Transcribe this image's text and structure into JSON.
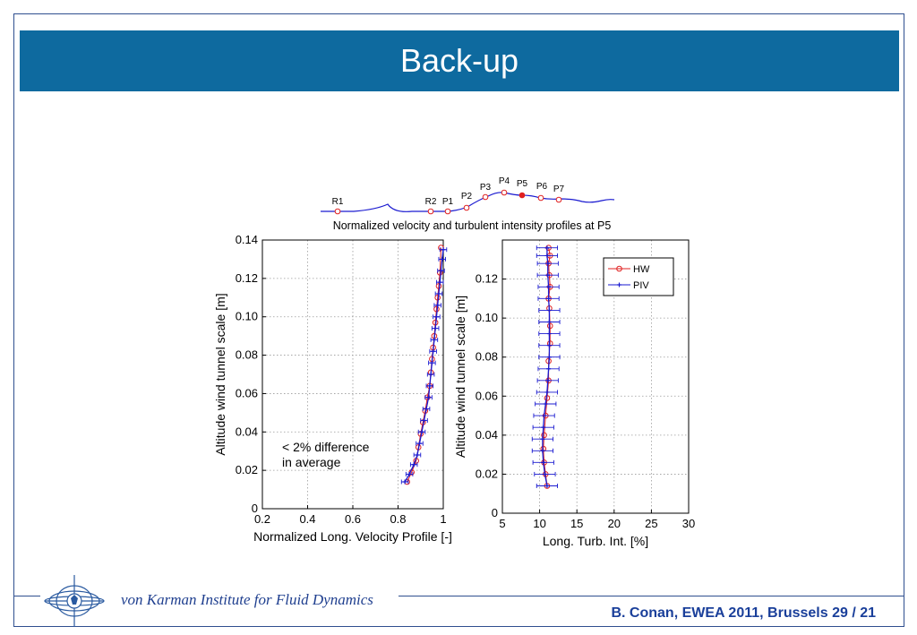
{
  "slide": {
    "title": "Back-up",
    "institute": "von Karman Institute for Fluid Dynamics",
    "citation": "B. Conan, EWEA 2011, Brussels  29 / 21"
  },
  "colors": {
    "header": "#0e6a9f",
    "hw": "#e02020",
    "piv": "#1a1ad0",
    "terrain": "#1a1ad0"
  },
  "terrain": {
    "stations": [
      "R1",
      "R2",
      "P1",
      "P2",
      "P3",
      "P4",
      "P5",
      "P6",
      "P7"
    ],
    "highlighted": "P5"
  },
  "chart_data": [
    {
      "type": "line",
      "title": "Normalized velocity and turbulent intensity profiles at P5",
      "xlabel": "Normalized Long. Velocity Profile [-]",
      "ylabel": "Altitude wind tunnel scale [m]",
      "xlim": [
        0.2,
        1.0
      ],
      "ylim": [
        0,
        0.14
      ],
      "xticks": [
        "0.2",
        "0.4",
        "0.6",
        "0.8",
        "1"
      ],
      "yticks": [
        "0",
        "0.02",
        "0.04",
        "0.06",
        "0.08",
        "0.10",
        "0.12",
        "0.14"
      ],
      "grid": true,
      "annotation": "< 2% difference\nin average",
      "series": [
        {
          "name": "HW",
          "marker": "circle",
          "x": [
            0.84,
            0.86,
            0.88,
            0.89,
            0.9,
            0.91,
            0.92,
            0.93,
            0.94,
            0.945,
            0.95,
            0.955,
            0.96,
            0.965,
            0.97,
            0.975,
            0.98,
            0.985,
            0.99
          ],
          "y": [
            0.014,
            0.019,
            0.025,
            0.032,
            0.039,
            0.045,
            0.051,
            0.058,
            0.064,
            0.071,
            0.078,
            0.084,
            0.09,
            0.097,
            0.104,
            0.11,
            0.116,
            0.123,
            0.136
          ]
        },
        {
          "name": "PIV",
          "marker": "plus",
          "x": [
            0.83,
            0.85,
            0.87,
            0.885,
            0.895,
            0.905,
            0.915,
            0.925,
            0.935,
            0.94,
            0.945,
            0.95,
            0.955,
            0.96,
            0.965,
            0.97,
            0.975,
            0.98,
            0.985,
            0.99,
            0.995,
            1.0
          ],
          "y": [
            0.014,
            0.018,
            0.023,
            0.028,
            0.034,
            0.04,
            0.046,
            0.052,
            0.058,
            0.064,
            0.07,
            0.076,
            0.082,
            0.088,
            0.094,
            0.1,
            0.106,
            0.112,
            0.118,
            0.124,
            0.13,
            0.135
          ],
          "xerr": 0.015
        }
      ]
    },
    {
      "type": "line",
      "xlabel": "Long. Turb. Int. [%]",
      "ylabel": "Altitude wind tunnel scale [m]",
      "xlim": [
        5,
        30
      ],
      "ylim": [
        0,
        0.14
      ],
      "xticks": [
        "5",
        "10",
        "15",
        "20",
        "25",
        "30"
      ],
      "yticks": [
        "0",
        "0.02",
        "0.04",
        "0.06",
        "0.08",
        "0.10",
        "0.12"
      ],
      "grid": true,
      "legend": "top-right",
      "series": [
        {
          "name": "HW",
          "marker": "circle",
          "x": [
            11.0,
            10.8,
            10.6,
            10.5,
            10.6,
            10.8,
            11.0,
            11.2,
            11.2,
            11.4,
            11.4,
            11.3,
            11.2,
            11.4,
            11.3,
            11.2,
            11.4,
            11.2
          ],
          "y": [
            0.014,
            0.02,
            0.026,
            0.033,
            0.04,
            0.05,
            0.059,
            0.068,
            0.078,
            0.087,
            0.096,
            0.105,
            0.11,
            0.116,
            0.122,
            0.128,
            0.132,
            0.136
          ]
        },
        {
          "name": "PIV",
          "marker": "plus",
          "x": [
            11.0,
            10.7,
            10.5,
            10.4,
            10.4,
            10.5,
            10.6,
            10.8,
            11.0,
            11.1,
            11.2,
            11.3,
            11.3,
            11.3,
            11.3,
            11.3,
            11.2,
            11.2,
            11.1,
            11.1,
            11.0,
            11.0
          ],
          "y": [
            0.014,
            0.02,
            0.026,
            0.032,
            0.038,
            0.044,
            0.05,
            0.056,
            0.062,
            0.068,
            0.074,
            0.08,
            0.086,
            0.092,
            0.098,
            0.104,
            0.11,
            0.116,
            0.122,
            0.128,
            0.132,
            0.136
          ],
          "xerr": 1.4
        }
      ]
    }
  ]
}
